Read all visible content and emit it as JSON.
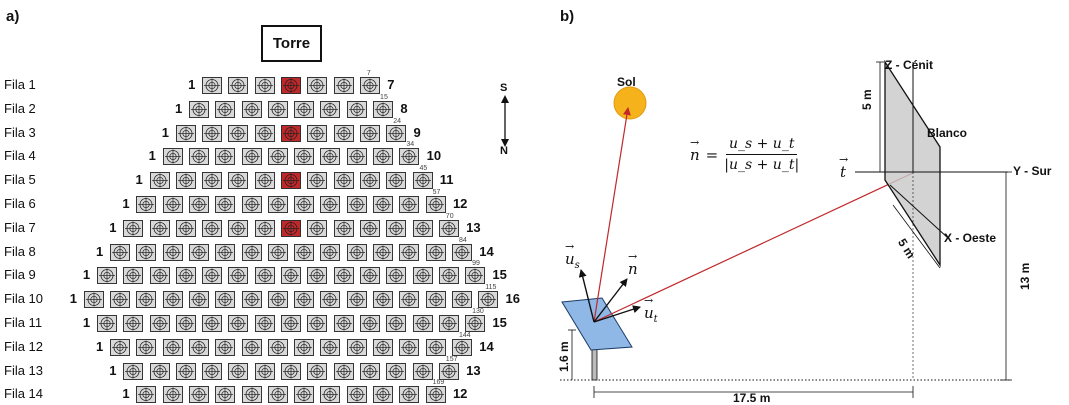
{
  "panel_a": {
    "label": "a)",
    "tower": "Torre",
    "compass": {
      "north": "N",
      "south": "S"
    },
    "rows": [
      {
        "label": "Fila 1",
        "first": "1",
        "last": "7",
        "count": 7,
        "end_id": "7",
        "marked": [
          4
        ]
      },
      {
        "label": "Fila 2",
        "first": "1",
        "last": "8",
        "count": 8,
        "end_id": "15",
        "marked": []
      },
      {
        "label": "Fila 3",
        "first": "1",
        "last": "9",
        "count": 9,
        "end_id": "24",
        "marked": [
          5
        ]
      },
      {
        "label": "Fila 4",
        "first": "1",
        "last": "10",
        "count": 10,
        "end_id": "34",
        "marked": []
      },
      {
        "label": "Fila 5",
        "first": "1",
        "last": "11",
        "count": 11,
        "end_id": "45",
        "marked": [
          6
        ]
      },
      {
        "label": "Fila 6",
        "first": "1",
        "last": "12",
        "count": 12,
        "end_id": "57",
        "marked": []
      },
      {
        "label": "Fila 7",
        "first": "1",
        "last": "13",
        "count": 13,
        "end_id": "70",
        "marked": [
          7
        ]
      },
      {
        "label": "Fila 8",
        "first": "1",
        "last": "14",
        "count": 14,
        "end_id": "84",
        "marked": []
      },
      {
        "label": "Fila 9",
        "first": "1",
        "last": "15",
        "count": 15,
        "end_id": "99",
        "marked": []
      },
      {
        "label": "Fila 10",
        "first": "1",
        "last": "16",
        "count": 16,
        "end_id": "115",
        "marked": []
      },
      {
        "label": "Fila 11",
        "first": "1",
        "last": "15",
        "count": 15,
        "end_id": "130",
        "marked": []
      },
      {
        "label": "Fila 12",
        "first": "1",
        "last": "14",
        "count": 14,
        "end_id": "144",
        "marked": []
      },
      {
        "label": "Fila 13",
        "first": "1",
        "last": "13",
        "count": 13,
        "end_id": "157",
        "marked": []
      },
      {
        "label": "Fila 14",
        "first": "1",
        "last": "12",
        "count": 12,
        "end_id": "169",
        "marked": []
      }
    ],
    "colors": {
      "heliostat_fill": "#d9d9d9",
      "marked_fill": "#c0282a",
      "stroke": "#222222"
    }
  },
  "panel_b": {
    "label": "b)",
    "sun": "Sol",
    "axis_z": "Z - Cénit",
    "axis_y": "Y - Sur",
    "axis_x": "X - Oeste",
    "target": "Blanco",
    "dim_target_height": "5 m",
    "dim_target_width": "5 m",
    "dim_tower_height": "13 m",
    "dim_heliostat_height": "1.6 m",
    "dim_distance": "17.5 m",
    "vec_us": "u",
    "vec_us_sub": "s",
    "vec_ut": "u",
    "vec_ut_sub": "t",
    "vec_n": "n",
    "vec_t": "t",
    "equation": {
      "lhs": "n",
      "numerator": "u_s + u_t",
      "denominator": "|u_s + u_t|"
    },
    "colors": {
      "sun": "#f5b21a",
      "ray": "#c0282a",
      "mirror": "#8fb8e6",
      "target": "#c8c8c8"
    }
  }
}
